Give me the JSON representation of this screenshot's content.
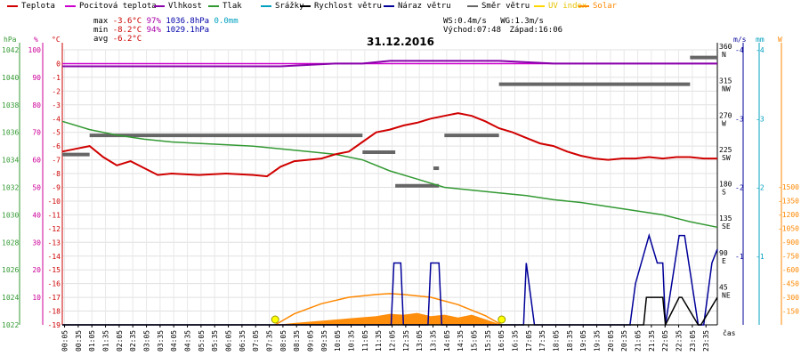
{
  "legend": [
    {
      "label": "Teplota",
      "color": "#d00000"
    },
    {
      "label": "Pocitová teplota",
      "color": "#cc00cc"
    },
    {
      "label": "Vlhkost",
      "color": "#8800aa"
    },
    {
      "label": "Tlak",
      "color": "#339933"
    },
    {
      "label": "Srážky",
      "color": "#00a0c0"
    },
    {
      "label": "Rychlost větru",
      "color": "#000000"
    },
    {
      "label": "Náraz větru",
      "color": "#000099"
    },
    {
      "label": "Směr větru",
      "color": "#666666"
    },
    {
      "label": "UV index",
      "color": "#ffd700"
    },
    {
      "label": "Solar",
      "color": "#ff8800"
    }
  ],
  "stats": {
    "max_label": "max",
    "max_temp": "-3.6°C",
    "max_hum": "97%",
    "max_press": "1036.8hPa",
    "max_rain": "0.0mm",
    "min_label": "min",
    "min_temp": "-8.2°C",
    "min_hum": "94%",
    "min_press": "1029.1hPa",
    "avg_label": "avg",
    "avg_temp": "-6.2°C",
    "ws": "WS:0.4m/s",
    "wg": "WG:1.3m/s",
    "sunrise": "Východ:07:48",
    "sunset": "Západ:16:06"
  },
  "date": "31.12.2016",
  "axes": {
    "unit_hpa": "hPa",
    "unit_pct": "%",
    "unit_c": "°C",
    "unit_ms": "m/s",
    "unit_mm": "mm",
    "unit_w": "W",
    "xlabel": "čas",
    "hpa_ticks": [
      1022,
      1024,
      1026,
      1028,
      1030,
      1032,
      1034,
      1036,
      1038,
      1040,
      1042
    ],
    "pct_ticks": [
      10,
      20,
      30,
      40,
      50,
      60,
      70,
      80,
      90,
      100
    ],
    "c_ticks": [
      0,
      -1,
      -2,
      -3,
      -4,
      -5,
      -6,
      -7,
      -8,
      -9,
      -10,
      -11,
      -12,
      -13,
      -14,
      -15,
      -16,
      -17,
      -18,
      -19
    ],
    "dir_ticks": [
      {
        "deg": 360,
        "label": "360",
        "dir": "N"
      },
      {
        "deg": 315,
        "label": "315",
        "dir": "NW"
      },
      {
        "deg": 270,
        "label": "270",
        "dir": "W"
      },
      {
        "deg": 225,
        "label": "225",
        "dir": "SW"
      },
      {
        "deg": 180,
        "label": "180",
        "dir": "S"
      },
      {
        "deg": 135,
        "label": "135",
        "dir": "SE"
      },
      {
        "deg": 90,
        "label": "90",
        "dir": "E"
      },
      {
        "deg": 45,
        "label": "45",
        "dir": "NE"
      }
    ],
    "ms_ticks": [
      1,
      2,
      3,
      4
    ],
    "w_ticks": [
      150,
      300,
      450,
      600,
      750,
      900,
      1050,
      1200,
      1350,
      1500
    ],
    "x_ticks": [
      "00:05",
      "00:35",
      "01:05",
      "01:35",
      "02:05",
      "02:35",
      "03:05",
      "03:35",
      "04:05",
      "04:35",
      "05:05",
      "05:35",
      "06:05",
      "06:35",
      "07:05",
      "07:35",
      "08:05",
      "08:35",
      "09:05",
      "09:35",
      "10:05",
      "10:35",
      "11:05",
      "11:35",
      "12:05",
      "12:35",
      "13:05",
      "13:35",
      "14:05",
      "14:35",
      "15:05",
      "15:35",
      "16:05",
      "16:35",
      "17:05",
      "17:35",
      "18:05",
      "18:35",
      "19:05",
      "19:35",
      "20:05",
      "20:35",
      "21:05",
      "21:35",
      "22:05",
      "22:35",
      "23:05",
      "23:35"
    ]
  },
  "chart_data": {
    "type": "line",
    "title": "31.12.2016",
    "xlabel": "čas",
    "x_range_hours": [
      0,
      24
    ],
    "ylim_temp": [
      -19,
      1
    ],
    "ylim_humidity": [
      0,
      100
    ],
    "ylim_pressure": [
      1022,
      1042
    ],
    "ylim_wind": [
      0,
      4
    ],
    "ylim_solar": [
      0,
      1500
    ],
    "series": [
      {
        "name": "Teplota",
        "axis": "temp",
        "color": "#d00000",
        "x": [
          0.0,
          0.5,
          1.0,
          1.5,
          2.0,
          2.5,
          3.0,
          3.5,
          4.0,
          5.0,
          6.0,
          7.0,
          7.5,
          8.0,
          8.5,
          9.0,
          9.5,
          10.0,
          10.5,
          11.0,
          11.5,
          12.0,
          12.5,
          13.0,
          13.5,
          14.0,
          14.5,
          15.0,
          15.5,
          16.0,
          16.5,
          17.0,
          17.5,
          18.0,
          18.5,
          19.0,
          19.5,
          20.0,
          20.5,
          21.0,
          21.5,
          22.0,
          22.5,
          23.0,
          23.5,
          24.0
        ],
        "y": [
          -6.4,
          -6.2,
          -6.0,
          -6.8,
          -7.4,
          -7.1,
          -7.6,
          -8.1,
          -8.0,
          -8.1,
          -8.0,
          -8.1,
          -8.2,
          -7.5,
          -7.1,
          -7.0,
          -6.9,
          -6.6,
          -6.4,
          -5.7,
          -5.0,
          -4.8,
          -4.5,
          -4.3,
          -4.0,
          -3.8,
          -3.6,
          -3.8,
          -4.2,
          -4.7,
          -5.0,
          -5.4,
          -5.8,
          -6.0,
          -6.4,
          -6.7,
          -6.9,
          -7.0,
          -6.9,
          -6.9,
          -6.8,
          -6.9,
          -6.8,
          -6.8,
          -6.9,
          -6.9
        ]
      },
      {
        "name": "Pocitová teplota",
        "axis": "temp",
        "color": "#cc00cc",
        "x": [
          0,
          24
        ],
        "y": [
          0.0,
          0.0
        ]
      },
      {
        "name": "Vlhkost",
        "axis": "humidity",
        "color": "#8800aa",
        "x": [
          0.0,
          2.0,
          4.0,
          6.0,
          8.0,
          10.0,
          11.0,
          12.0,
          14.0,
          16.0,
          18.0,
          20.0,
          22.0,
          23.5,
          24.0
        ],
        "y": [
          94,
          94,
          94,
          94,
          94,
          95,
          95,
          96,
          96,
          96,
          95,
          95,
          95,
          95,
          95
        ]
      },
      {
        "name": "Tlak",
        "axis": "pressure",
        "color": "#339933",
        "x": [
          0.0,
          1.0,
          2.0,
          3.0,
          4.0,
          5.0,
          6.0,
          7.0,
          8.0,
          9.0,
          10.0,
          11.0,
          12.0,
          13.0,
          14.0,
          15.0,
          16.0,
          17.0,
          18.0,
          19.0,
          20.0,
          21.0,
          22.0,
          23.0,
          24.0
        ],
        "y": [
          1036.8,
          1036.2,
          1035.8,
          1035.5,
          1035.3,
          1035.2,
          1035.1,
          1035.0,
          1034.8,
          1034.6,
          1034.4,
          1034.0,
          1033.2,
          1032.6,
          1032.0,
          1031.8,
          1031.6,
          1031.4,
          1031.1,
          1030.9,
          1030.6,
          1030.3,
          1030.0,
          1029.5,
          1029.1
        ]
      },
      {
        "name": "Rychlost větru",
        "axis": "wind",
        "color": "#000000",
        "x": [
          0.0,
          21.3,
          21.4,
          22.0,
          22.1,
          22.6,
          22.7,
          23.3,
          23.4,
          24.0
        ],
        "y": [
          0.0,
          0.0,
          0.4,
          0.4,
          0.0,
          0.4,
          0.4,
          0.0,
          0.0,
          0.4
        ]
      },
      {
        "name": "Náraz větru",
        "axis": "wind",
        "color": "#000099",
        "x": [
          0.0,
          12.05,
          12.15,
          12.4,
          12.5,
          13.4,
          13.5,
          13.8,
          13.9,
          16.9,
          17.0,
          17.3,
          17.6,
          20.8,
          21.0,
          21.5,
          21.8,
          22.0,
          22.1,
          22.6,
          22.8,
          23.3,
          23.5,
          23.8,
          24.0
        ],
        "y": [
          0.0,
          0.0,
          0.9,
          0.9,
          0.0,
          0.0,
          0.9,
          0.9,
          0.0,
          0.0,
          0.9,
          0.0,
          0.0,
          0.0,
          0.6,
          1.3,
          0.9,
          0.9,
          0.0,
          1.3,
          1.3,
          0.0,
          0.0,
          0.9,
          1.1
        ]
      },
      {
        "name": "Solar",
        "axis": "solar",
        "color": "#ff8800",
        "x": [
          7.8,
          8.5,
          9.5,
          10.5,
          11.5,
          12.0,
          12.5,
          13.0,
          13.5,
          14.0,
          14.5,
          15.0,
          15.5,
          16.1
        ],
        "y": [
          0,
          20,
          45,
          70,
          95,
          120,
          110,
          130,
          95,
          110,
          80,
          110,
          60,
          0
        ]
      },
      {
        "name": "Solar max",
        "axis": "solar",
        "color": "#ff8800",
        "x": [
          7.8,
          8.5,
          9.5,
          10.5,
          11.5,
          12.0,
          12.5,
          13.5,
          14.5,
          15.5,
          16.1
        ],
        "y": [
          0,
          120,
          230,
          300,
          330,
          340,
          330,
          300,
          220,
          100,
          0
        ]
      }
    ],
    "wind_direction_segments": [
      {
        "x0": 0.0,
        "x1": 1.0,
        "deg": 223
      },
      {
        "x0": 1.0,
        "x1": 11.0,
        "deg": 248
      },
      {
        "x0": 11.0,
        "x1": 12.2,
        "deg": 226
      },
      {
        "x0": 12.2,
        "x1": 13.8,
        "deg": 182
      },
      {
        "x0": 13.6,
        "x1": 13.8,
        "deg": 205
      },
      {
        "x0": 14.0,
        "x1": 16.0,
        "deg": 248
      },
      {
        "x0": 16.0,
        "x1": 23.0,
        "deg": 315
      },
      {
        "x0": 23.0,
        "x1": 24.0,
        "deg": 350
      }
    ]
  }
}
